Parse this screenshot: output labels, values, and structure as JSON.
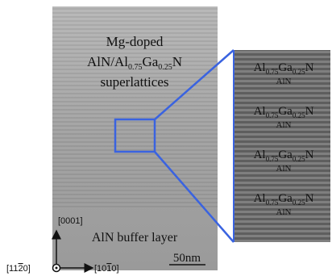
{
  "image": {
    "label": {
      "line1": "Mg-doped",
      "line2": [
        "AlN/Al",
        "0.75",
        "Ga",
        "0.25",
        "N"
      ],
      "line3": "superlattices"
    },
    "inset": {
      "layers": [
        {
          "top": [
            "Al",
            "0.75",
            "Ga",
            "0.25",
            "N"
          ],
          "bottom": "AlN"
        },
        {
          "top": [
            "Al",
            "0.75",
            "Ga",
            "0.25",
            "N"
          ],
          "bottom": "AlN"
        },
        {
          "top": [
            "Al",
            "0.75",
            "Ga",
            "0.25",
            "N"
          ],
          "bottom": "AlN"
        },
        {
          "top": [
            "Al",
            "0.75",
            "Ga",
            "0.25",
            "N"
          ],
          "bottom": "AlN"
        }
      ]
    },
    "axes": {
      "vertical": "[0001]",
      "origin": [
        "[11",
        "2",
        "0]"
      ],
      "horizontal": [
        "[10",
        "1",
        "0]"
      ]
    },
    "buffer_label": "AlN buffer layer",
    "scale_bar": "50nm"
  }
}
